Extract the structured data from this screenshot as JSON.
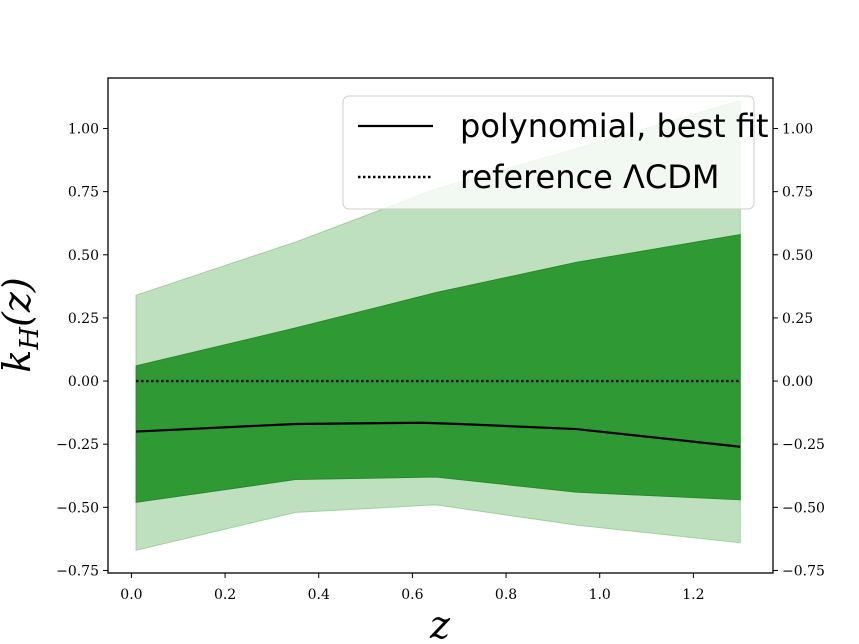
{
  "chart_data": {
    "type": "line",
    "xlabel": "z",
    "ylabel": "k_H(z)",
    "xlim": [
      -0.05,
      1.37
    ],
    "ylim": [
      -0.76,
      1.2
    ],
    "x_ticks": [
      "0.0",
      "0.2",
      "0.4",
      "0.6",
      "0.8",
      "1.0",
      "1.2"
    ],
    "y_ticks": [
      "−0.75",
      "−0.50",
      "−0.25",
      "0.00",
      "0.25",
      "0.50",
      "0.75",
      "1.00"
    ],
    "grid": false,
    "legend_position": "top-right",
    "colors": {
      "band_outer": "#bfe0bf",
      "band_inner": "#2f9a33",
      "line": "#000000"
    },
    "bands": [
      {
        "kind": "outer",
        "x": [
          0.01,
          0.35,
          0.65,
          0.95,
          1.3
        ],
        "upper": [
          0.34,
          0.55,
          0.76,
          0.92,
          1.11
        ],
        "lower": [
          -0.67,
          -0.52,
          -0.49,
          -0.57,
          -0.64
        ]
      },
      {
        "kind": "inner",
        "x": [
          0.01,
          0.35,
          0.65,
          0.95,
          1.3
        ],
        "upper": [
          0.06,
          0.21,
          0.35,
          0.47,
          0.58
        ],
        "lower": [
          -0.48,
          -0.39,
          -0.38,
          -0.44,
          -0.47
        ]
      }
    ],
    "series": [
      {
        "name": "polynomial, best fit",
        "style": "solid",
        "x": [
          0.01,
          0.35,
          0.62,
          0.7,
          0.95,
          1.3
        ],
        "y": [
          -0.2,
          -0.17,
          -0.165,
          -0.17,
          -0.19,
          -0.26
        ]
      },
      {
        "name": "reference ΛCDM",
        "style": "dotted",
        "x": [
          0.01,
          1.3
        ],
        "y": [
          0.0,
          0.0
        ]
      }
    ]
  }
}
